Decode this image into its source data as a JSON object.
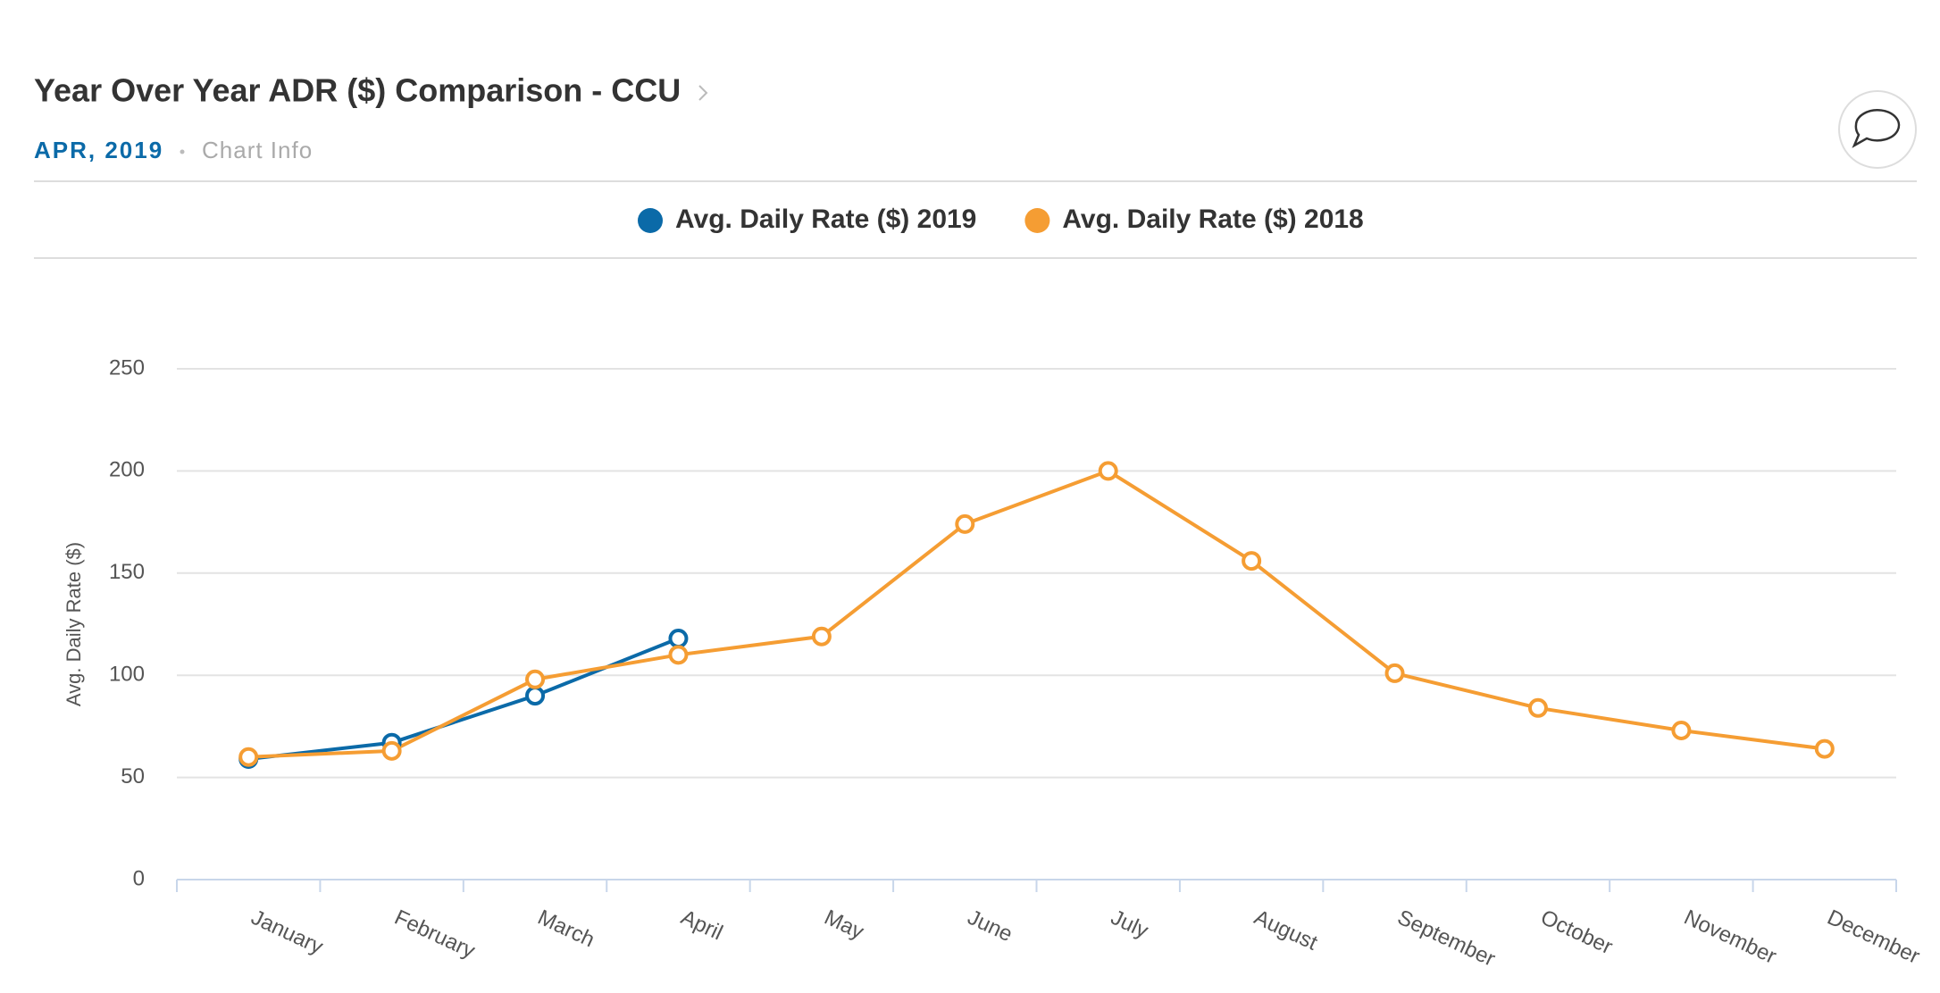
{
  "chart_data": {
    "type": "line",
    "title": "Year Over Year ADR ($) Comparison - CCU",
    "subtitle": "APR, 2019",
    "chart_info": "Chart Info",
    "ylabel": "Avg. Daily Rate ($)",
    "categories": [
      "January",
      "February",
      "March",
      "April",
      "May",
      "June",
      "July",
      "August",
      "September",
      "October",
      "November",
      "December"
    ],
    "series": [
      {
        "name": "Avg. Daily Rate ($) 2019",
        "color": "#0b6aa8",
        "values": [
          59,
          67,
          90,
          118,
          null,
          null,
          null,
          null,
          null,
          null,
          null,
          null
        ]
      },
      {
        "name": "Avg. Daily Rate ($) 2018",
        "color": "#f59d33",
        "values": [
          60,
          63,
          98,
          110,
          119,
          174,
          200,
          156,
          101,
          84,
          73,
          64
        ]
      }
    ],
    "ylim": [
      0,
      250
    ],
    "yticks": [
      0,
      50,
      100,
      150,
      200,
      250
    ],
    "grid": true,
    "legend": "top"
  }
}
